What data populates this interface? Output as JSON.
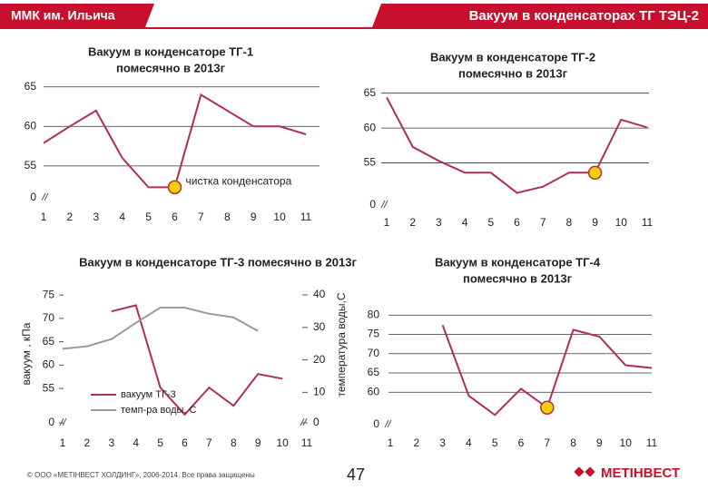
{
  "header": {
    "left": "ММК им. Ильича",
    "title": "Вакуум в конденсаторах ТГ ТЭЦ-2"
  },
  "footer": {
    "copyright": "© ООО «МЕТІНВЕСТ ХОЛДИНГ», 2006-2014. Все права защищены",
    "page": "47",
    "logo": "МЕТІНВЕСТ"
  },
  "chart_data": [
    {
      "type": "line",
      "title": "Вакуум в конденсаторе ТГ-1",
      "subtitle": "помесячно в 2013г",
      "categories": [
        1,
        2,
        3,
        4,
        5,
        6,
        7,
        8,
        9,
        10,
        11
      ],
      "series": [
        {
          "color": "#b0304a",
          "values": [
            57.9,
            60,
            62,
            56,
            52.3,
            52.3,
            64,
            62,
            60,
            60,
            59
          ]
        }
      ],
      "ylim": [
        0,
        66
      ],
      "yticks": [
        0,
        55,
        60,
        65
      ],
      "axis_break": [
        0,
        52
      ],
      "grid": true,
      "highlight": {
        "index": 5,
        "color": "#f5d000"
      },
      "annotation": "чистка конденсатора"
    },
    {
      "type": "line",
      "title": "Вакуум в конденсаторе ТГ-2",
      "subtitle": "помесячно в 2013г",
      "categories": [
        1,
        2,
        3,
        4,
        5,
        6,
        7,
        8,
        9,
        10,
        11
      ],
      "series": [
        {
          "color": "#b0304a",
          "values": [
            64.4,
            57.3,
            55.3,
            53.6,
            53.6,
            50.7,
            51.6,
            53.6,
            53.6,
            61.2,
            60.1
          ]
        }
      ],
      "ylim": [
        0,
        66
      ],
      "yticks": [
        0,
        55,
        60,
        65
      ],
      "axis_break": [
        0,
        50
      ],
      "grid": true,
      "highlight": {
        "index": 8,
        "color": "#f5d000"
      }
    },
    {
      "type": "line",
      "title": "Вакуум в конденсаторе ТГ-3 помесячно в 2013г",
      "categories": [
        1,
        2,
        3,
        4,
        5,
        6,
        7,
        8,
        9,
        10,
        11
      ],
      "ylabel": "вакуум , кПа",
      "y2label": "температура воды,С",
      "series": [
        {
          "name": "вакуум ТГ-3",
          "color": "#b0304a",
          "values": [
            null,
            null,
            71.5,
            72.8,
            55.2,
            49.4,
            55.2,
            51.3,
            58.1,
            57.1,
            null
          ]
        },
        {
          "name": "темп-ра воды, С",
          "color": "#9a9a9a",
          "axis": "y2",
          "values": [
            23.4,
            24.2,
            26.4,
            31.4,
            36.1,
            36.1,
            34.2,
            33.1,
            28.9,
            null,
            null
          ]
        }
      ],
      "ylim": [
        0,
        76
      ],
      "yticks": [
        0,
        55,
        60,
        65,
        70,
        75
      ],
      "axis_break": [
        0,
        49
      ],
      "y2lim": [
        0,
        41.4
      ],
      "y2ticks": [
        0,
        10,
        20,
        30,
        40
      ],
      "y2_axis_break": [
        0,
        2
      ],
      "grid": false
    },
    {
      "type": "line",
      "title": "Вакуум в конденсаторе ТГ-4",
      "subtitle": "помесячно в 2013г",
      "categories": [
        1,
        2,
        3,
        4,
        5,
        6,
        7,
        8,
        9,
        10,
        11
      ],
      "series": [
        {
          "color": "#b0304a",
          "values": [
            null,
            null,
            77.4,
            59.1,
            54.1,
            60.9,
            56,
            76.2,
            74.4,
            67,
            66.3
          ]
        }
      ],
      "ylim": [
        0,
        81
      ],
      "yticks": [
        0,
        60,
        65,
        70,
        75,
        80
      ],
      "axis_break": [
        0,
        53
      ],
      "grid": true,
      "highlight": {
        "index": 6,
        "color": "#f5d000"
      }
    }
  ]
}
